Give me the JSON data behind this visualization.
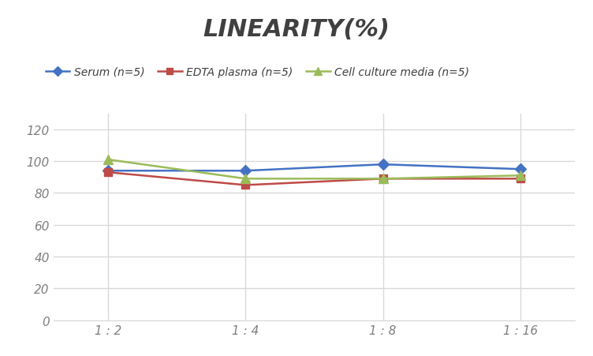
{
  "title": "LINEARITY(%)",
  "title_fontsize": 22,
  "title_fontstyle": "italic",
  "title_fontweight": "bold",
  "title_color": "#404040",
  "x_labels": [
    "1 : 2",
    "1 : 4",
    "1 : 8",
    "1 : 16"
  ],
  "x_positions": [
    0,
    1,
    2,
    3
  ],
  "series": [
    {
      "label": "Serum (n=5)",
      "values": [
        94,
        94,
        98,
        95
      ],
      "color": "#4472C4",
      "marker": "D",
      "markersize": 7,
      "linewidth": 1.8
    },
    {
      "label": "EDTA plasma (n=5)",
      "values": [
        93,
        85,
        89,
        89
      ],
      "color": "#BE4B48",
      "marker": "s",
      "markersize": 7,
      "linewidth": 1.8
    },
    {
      "label": "Cell culture media (n=5)",
      "values": [
        101,
        89,
        89,
        91
      ],
      "color": "#9BBB59",
      "marker": "^",
      "markersize": 8,
      "linewidth": 1.8
    }
  ],
  "ylim": [
    0,
    130
  ],
  "yticks": [
    0,
    20,
    40,
    60,
    80,
    100,
    120
  ],
  "xlim": [
    -0.4,
    3.4
  ],
  "grid_color": "#D9D9D9",
  "background_color": "#FFFFFF",
  "legend_fontsize": 10,
  "tick_fontsize": 11,
  "tick_color": "#808080"
}
